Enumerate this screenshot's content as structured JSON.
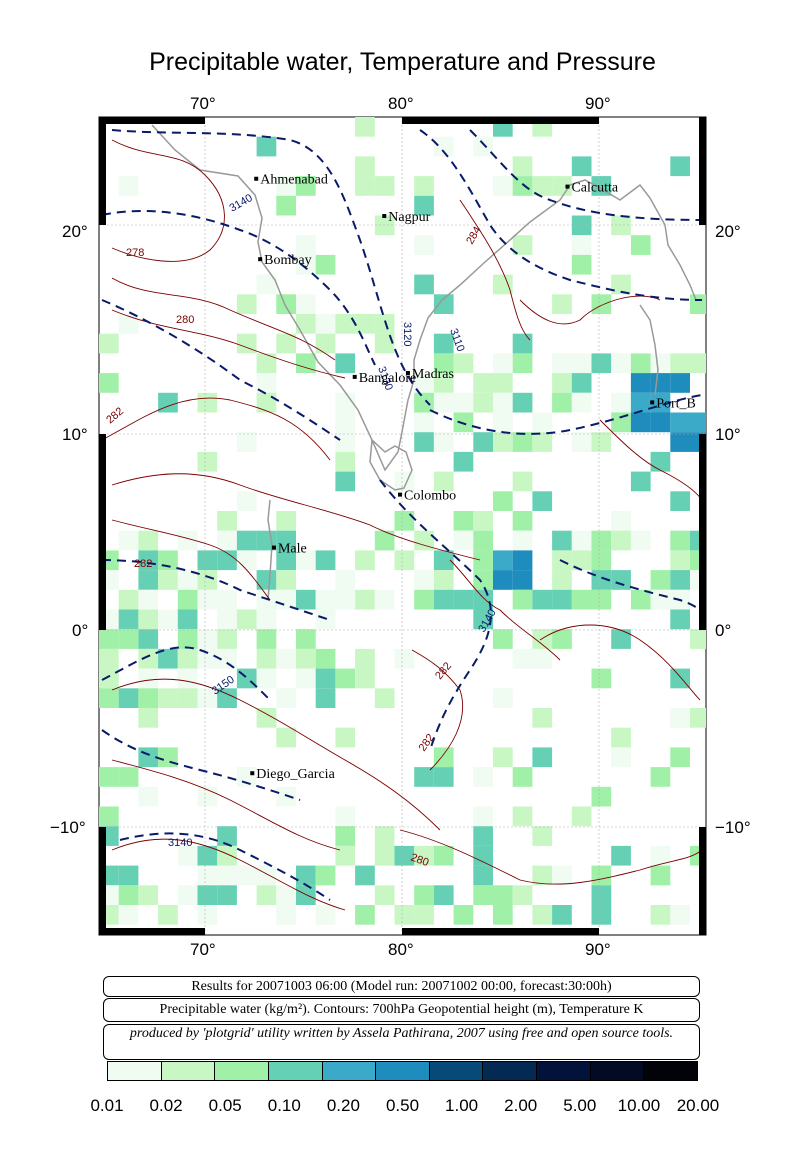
{
  "title": "Precipitable water, Temperature and Pressure",
  "lon_labels": [
    "70°",
    "80°",
    "90°"
  ],
  "lat_labels": [
    "20°",
    "10°",
    "0°",
    "−10°"
  ],
  "cities": [
    {
      "name": "Ahmenabad",
      "lon": 72.6,
      "lat": 23.0
    },
    {
      "name": "Nagpur",
      "lon": 79.1,
      "lat": 21.1
    },
    {
      "name": "Calcutta",
      "lon": 88.4,
      "lat": 22.6
    },
    {
      "name": "Bombay",
      "lon": 72.8,
      "lat": 18.9
    },
    {
      "name": "Bangalore",
      "lon": 77.6,
      "lat": 12.9
    },
    {
      "name": "Madras",
      "lon": 80.3,
      "lat": 13.1
    },
    {
      "name": "Port_B",
      "lon": 92.7,
      "lat": 11.6
    },
    {
      "name": "Colombo",
      "lon": 79.9,
      "lat": 6.9
    },
    {
      "name": "Male",
      "lon": 73.5,
      "lat": 4.2
    },
    {
      "name": "Diego_Garcia",
      "lon": 72.4,
      "lat": -7.3
    }
  ],
  "contour_labels": [
    "3140",
    "278",
    "280",
    "282",
    "3120",
    "3110",
    "3130",
    "284",
    "3150",
    "282",
    "3140",
    "282",
    "282",
    "280",
    "3140"
  ],
  "info": {
    "line1": "Results for 20071003 06:00 (Model run: 20071002 00:00, forecast:30:00h)",
    "line2": "Precipitable water (kg/m²).  Contours: 700hPa Geopotential height (m), Temperature K",
    "line3": "produced by 'plotgrid' utility written by Assela Pathirana, 2007 using free and open source tools."
  },
  "legend": {
    "labels": [
      "0.01",
      "0.02",
      "0.05",
      "0.10",
      "0.20",
      "0.50",
      "1.00",
      "2.00",
      "5.00",
      "10.00",
      "20.00"
    ],
    "colors": [
      "#f0fbf1",
      "#c8f7c4",
      "#a0f0a8",
      "#66d0b4",
      "#3aaac8",
      "#1e8cbc",
      "#074a78",
      "#042a54",
      "#02123a",
      "#020a24",
      "#010308"
    ]
  }
}
